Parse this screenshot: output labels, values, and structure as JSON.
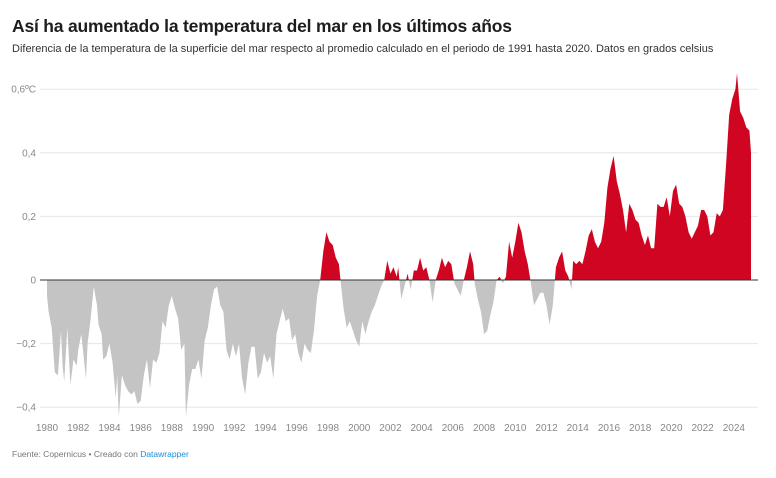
{
  "title": "Así ha aumentado la temperatura del mar en los últimos años",
  "subtitle": "Diferencia de la temperatura de la superficie del mar respecto al promedio calculado en el periodo de 1991 hasta 2020. Datos en grados celsius",
  "footer": {
    "source": "Fuente: Copernicus • Creado con ",
    "link": "Datawrapper"
  },
  "chart_data": {
    "type": "area",
    "title": "Así ha aumentado la temperatura del mar en los últimos años",
    "xlabel": "",
    "ylabel": "",
    "xlim": [
      1980,
      2025.1
    ],
    "ylim": [
      -0.43,
      0.65
    ],
    "grid": true,
    "colors": {
      "positive": "#d00521",
      "negative": "#c4c4c4",
      "zero_line": "#333333",
      "grid": "#e6e6e6"
    },
    "y_ticks": [
      {
        "v": 0.6,
        "label": "0,6ºC"
      },
      {
        "v": 0.4,
        "label": "0,4"
      },
      {
        "v": 0.2,
        "label": "0,2"
      },
      {
        "v": 0,
        "label": "0"
      },
      {
        "v": -0.2,
        "label": "−0,2"
      },
      {
        "v": -0.4,
        "label": "−0,4"
      }
    ],
    "x_ticks": [
      "1980",
      "1982",
      "1984",
      "1986",
      "1988",
      "1990",
      "1992",
      "1994",
      "1996",
      "1998",
      "2000",
      "2002",
      "2004",
      "2006",
      "2008",
      "2010",
      "2012",
      "2014",
      "2016",
      "2018",
      "2020",
      "2022",
      "2024"
    ],
    "points": [
      [
        1980.0,
        -0.05
      ],
      [
        1980.1,
        -0.1
      ],
      [
        1980.3,
        -0.15
      ],
      [
        1980.5,
        -0.29
      ],
      [
        1980.7,
        -0.3
      ],
      [
        1980.9,
        -0.16
      ],
      [
        1981.0,
        -0.27
      ],
      [
        1981.1,
        -0.32
      ],
      [
        1981.3,
        -0.15
      ],
      [
        1981.5,
        -0.33
      ],
      [
        1981.7,
        -0.25
      ],
      [
        1981.9,
        -0.27
      ],
      [
        1982.0,
        -0.22
      ],
      [
        1982.2,
        -0.17
      ],
      [
        1982.5,
        -0.31
      ],
      [
        1982.6,
        -0.2
      ],
      [
        1982.8,
        -0.12
      ],
      [
        1983.0,
        -0.02
      ],
      [
        1983.2,
        -0.08
      ],
      [
        1983.3,
        -0.14
      ],
      [
        1983.5,
        -0.17
      ],
      [
        1983.6,
        -0.25
      ],
      [
        1983.8,
        -0.24
      ],
      [
        1984.0,
        -0.2
      ],
      [
        1984.2,
        -0.26
      ],
      [
        1984.4,
        -0.37
      ],
      [
        1984.5,
        -0.3
      ],
      [
        1984.6,
        -0.43
      ],
      [
        1984.8,
        -0.3
      ],
      [
        1985.0,
        -0.33
      ],
      [
        1985.2,
        -0.35
      ],
      [
        1985.4,
        -0.36
      ],
      [
        1985.6,
        -0.35
      ],
      [
        1985.8,
        -0.39
      ],
      [
        1986.0,
        -0.38
      ],
      [
        1986.2,
        -0.3
      ],
      [
        1986.4,
        -0.25
      ],
      [
        1986.6,
        -0.34
      ],
      [
        1986.8,
        -0.25
      ],
      [
        1987.0,
        -0.26
      ],
      [
        1987.2,
        -0.23
      ],
      [
        1987.4,
        -0.13
      ],
      [
        1987.6,
        -0.15
      ],
      [
        1987.8,
        -0.08
      ],
      [
        1988.0,
        -0.05
      ],
      [
        1988.2,
        -0.09
      ],
      [
        1988.4,
        -0.12
      ],
      [
        1988.6,
        -0.22
      ],
      [
        1988.8,
        -0.2
      ],
      [
        1988.9,
        -0.43
      ],
      [
        1989.1,
        -0.33
      ],
      [
        1989.3,
        -0.28
      ],
      [
        1989.5,
        -0.28
      ],
      [
        1989.7,
        -0.25
      ],
      [
        1989.9,
        -0.31
      ],
      [
        1990.1,
        -0.19
      ],
      [
        1990.3,
        -0.15
      ],
      [
        1990.5,
        -0.08
      ],
      [
        1990.7,
        -0.03
      ],
      [
        1990.9,
        -0.02
      ],
      [
        1991.1,
        -0.08
      ],
      [
        1991.3,
        -0.1
      ],
      [
        1991.5,
        -0.22
      ],
      [
        1991.7,
        -0.25
      ],
      [
        1991.9,
        -0.2
      ],
      [
        1992.1,
        -0.24
      ],
      [
        1992.3,
        -0.2
      ],
      [
        1992.5,
        -0.31
      ],
      [
        1992.7,
        -0.36
      ],
      [
        1992.9,
        -0.26
      ],
      [
        1993.1,
        -0.21
      ],
      [
        1993.3,
        -0.21
      ],
      [
        1993.5,
        -0.31
      ],
      [
        1993.7,
        -0.29
      ],
      [
        1993.9,
        -0.23
      ],
      [
        1994.1,
        -0.26
      ],
      [
        1994.3,
        -0.24
      ],
      [
        1994.5,
        -0.31
      ],
      [
        1994.7,
        -0.17
      ],
      [
        1994.9,
        -0.13
      ],
      [
        1995.1,
        -0.09
      ],
      [
        1995.3,
        -0.13
      ],
      [
        1995.5,
        -0.12
      ],
      [
        1995.7,
        -0.19
      ],
      [
        1995.9,
        -0.17
      ],
      [
        1996.1,
        -0.23
      ],
      [
        1996.3,
        -0.26
      ],
      [
        1996.5,
        -0.2
      ],
      [
        1996.7,
        -0.22
      ],
      [
        1996.9,
        -0.23
      ],
      [
        1997.1,
        -0.16
      ],
      [
        1997.3,
        -0.05
      ],
      [
        1997.5,
        0.0
      ],
      [
        1997.7,
        0.09
      ],
      [
        1997.9,
        0.15
      ],
      [
        1998.1,
        0.12
      ],
      [
        1998.3,
        0.11
      ],
      [
        1998.5,
        0.07
      ],
      [
        1998.7,
        0.05
      ],
      [
        1998.8,
        0.0
      ],
      [
        1999.0,
        -0.09
      ],
      [
        1999.2,
        -0.15
      ],
      [
        1999.4,
        -0.13
      ],
      [
        1999.6,
        -0.16
      ],
      [
        1999.8,
        -0.19
      ],
      [
        2000.0,
        -0.21
      ],
      [
        2000.2,
        -0.13
      ],
      [
        2000.4,
        -0.17
      ],
      [
        2000.6,
        -0.13
      ],
      [
        2000.8,
        -0.1
      ],
      [
        2001.0,
        -0.08
      ],
      [
        2001.2,
        -0.05
      ],
      [
        2001.4,
        -0.02
      ],
      [
        2001.6,
        0.0
      ],
      [
        2001.8,
        0.06
      ],
      [
        2002.0,
        0.02
      ],
      [
        2002.2,
        0.04
      ],
      [
        2002.4,
        0.01
      ],
      [
        2002.5,
        0.04
      ],
      [
        2002.7,
        -0.06
      ],
      [
        2002.9,
        -0.02
      ],
      [
        2003.1,
        0.02
      ],
      [
        2003.3,
        -0.03
      ],
      [
        2003.5,
        0.03
      ],
      [
        2003.7,
        0.03
      ],
      [
        2003.9,
        0.07
      ],
      [
        2004.1,
        0.03
      ],
      [
        2004.3,
        0.04
      ],
      [
        2004.5,
        0.0
      ],
      [
        2004.7,
        -0.07
      ],
      [
        2004.9,
        0.0
      ],
      [
        2005.1,
        0.03
      ],
      [
        2005.3,
        0.07
      ],
      [
        2005.5,
        0.04
      ],
      [
        2005.7,
        0.06
      ],
      [
        2005.9,
        0.05
      ],
      [
        2006.1,
        -0.01
      ],
      [
        2006.3,
        -0.03
      ],
      [
        2006.5,
        -0.05
      ],
      [
        2006.7,
        0.0
      ],
      [
        2006.9,
        0.04
      ],
      [
        2007.1,
        0.09
      ],
      [
        2007.3,
        0.05
      ],
      [
        2007.4,
        -0.01
      ],
      [
        2007.6,
        -0.06
      ],
      [
        2007.8,
        -0.1
      ],
      [
        2008.0,
        -0.17
      ],
      [
        2008.2,
        -0.16
      ],
      [
        2008.4,
        -0.11
      ],
      [
        2008.6,
        -0.07
      ],
      [
        2008.8,
        0.0
      ],
      [
        2009.0,
        0.01
      ],
      [
        2009.2,
        -0.01
      ],
      [
        2009.4,
        0.01
      ],
      [
        2009.6,
        0.12
      ],
      [
        2009.8,
        0.07
      ],
      [
        2010.0,
        0.12
      ],
      [
        2010.2,
        0.18
      ],
      [
        2010.4,
        0.15
      ],
      [
        2010.6,
        0.09
      ],
      [
        2010.8,
        0.05
      ],
      [
        2011.0,
        -0.01
      ],
      [
        2011.2,
        -0.08
      ],
      [
        2011.4,
        -0.06
      ],
      [
        2011.6,
        -0.04
      ],
      [
        2011.8,
        -0.04
      ],
      [
        2012.0,
        -0.08
      ],
      [
        2012.2,
        -0.14
      ],
      [
        2012.4,
        -0.08
      ],
      [
        2012.6,
        0.04
      ],
      [
        2012.8,
        0.07
      ],
      [
        2013.0,
        0.09
      ],
      [
        2013.2,
        0.03
      ],
      [
        2013.4,
        0.01
      ],
      [
        2013.6,
        -0.03
      ],
      [
        2013.7,
        0.06
      ],
      [
        2013.9,
        0.05
      ],
      [
        2014.1,
        0.06
      ],
      [
        2014.3,
        0.05
      ],
      [
        2014.5,
        0.09
      ],
      [
        2014.7,
        0.14
      ],
      [
        2014.9,
        0.16
      ],
      [
        2015.1,
        0.12
      ],
      [
        2015.3,
        0.1
      ],
      [
        2015.5,
        0.12
      ],
      [
        2015.7,
        0.18
      ],
      [
        2015.9,
        0.29
      ],
      [
        2016.1,
        0.35
      ],
      [
        2016.3,
        0.39
      ],
      [
        2016.5,
        0.31
      ],
      [
        2016.7,
        0.27
      ],
      [
        2016.9,
        0.22
      ],
      [
        2017.1,
        0.15
      ],
      [
        2017.3,
        0.24
      ],
      [
        2017.5,
        0.22
      ],
      [
        2017.7,
        0.19
      ],
      [
        2017.9,
        0.18
      ],
      [
        2018.1,
        0.14
      ],
      [
        2018.3,
        0.11
      ],
      [
        2018.5,
        0.14
      ],
      [
        2018.7,
        0.1
      ],
      [
        2018.9,
        0.1
      ],
      [
        2019.1,
        0.24
      ],
      [
        2019.3,
        0.23
      ],
      [
        2019.5,
        0.23
      ],
      [
        2019.7,
        0.26
      ],
      [
        2019.9,
        0.2
      ],
      [
        2020.1,
        0.28
      ],
      [
        2020.3,
        0.3
      ],
      [
        2020.5,
        0.24
      ],
      [
        2020.7,
        0.23
      ],
      [
        2020.9,
        0.2
      ],
      [
        2021.1,
        0.15
      ],
      [
        2021.3,
        0.13
      ],
      [
        2021.5,
        0.15
      ],
      [
        2021.7,
        0.17
      ],
      [
        2021.9,
        0.22
      ],
      [
        2022.1,
        0.22
      ],
      [
        2022.3,
        0.2
      ],
      [
        2022.5,
        0.14
      ],
      [
        2022.7,
        0.15
      ],
      [
        2022.9,
        0.21
      ],
      [
        2023.1,
        0.2
      ],
      [
        2023.3,
        0.22
      ],
      [
        2023.5,
        0.36
      ],
      [
        2023.7,
        0.52
      ],
      [
        2023.9,
        0.57
      ],
      [
        2024.1,
        0.6
      ],
      [
        2024.2,
        0.65
      ],
      [
        2024.4,
        0.53
      ],
      [
        2024.6,
        0.51
      ],
      [
        2024.8,
        0.48
      ],
      [
        2025.0,
        0.47
      ],
      [
        2025.1,
        0.4
      ]
    ]
  }
}
